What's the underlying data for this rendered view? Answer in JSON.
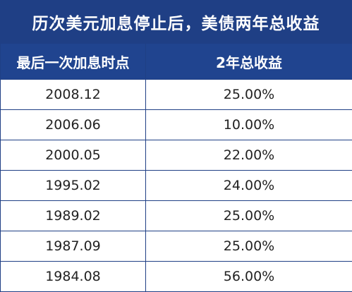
{
  "title": "历次美元加息停止后，美债两年总收益",
  "table": {
    "headers": [
      "最后一次加息时点",
      "2年总收益"
    ],
    "rows": [
      {
        "date": "2008.12",
        "return": "25.00%"
      },
      {
        "date": "2006.06",
        "return": "10.00%"
      },
      {
        "date": "2000.05",
        "return": "22.00%"
      },
      {
        "date": "1995.02",
        "return": "24.00%"
      },
      {
        "date": "1989.02",
        "return": "25.00%"
      },
      {
        "date": "1987.09",
        "return": "25.00%"
      },
      {
        "date": "1984.08",
        "return": "56.00%"
      }
    ]
  },
  "colors": {
    "header_blue": "#1f3f85",
    "text": "#222222"
  }
}
